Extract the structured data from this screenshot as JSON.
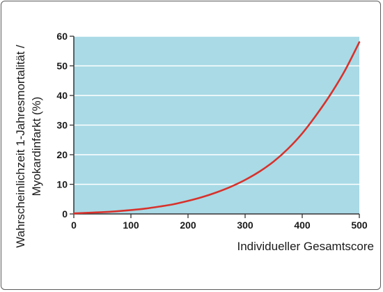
{
  "chart_data": {
    "type": "line",
    "title": "",
    "xlabel": "Individueller Gesamtscore",
    "ylabel_lines": [
      "Wahrscheinlichzeit 1-Jahresmortalität /",
      "Myokardinfarkt (%)"
    ],
    "xlim": [
      0,
      500
    ],
    "ylim": [
      0,
      60
    ],
    "x_ticks": [
      0,
      100,
      200,
      300,
      400,
      500
    ],
    "y_ticks": [
      0,
      10,
      20,
      30,
      40,
      50,
      60
    ],
    "grid": true,
    "series": [
      {
        "color": "#d9312b",
        "x": [
          0,
          25,
          50,
          75,
          100,
          125,
          150,
          175,
          200,
          225,
          250,
          275,
          300,
          325,
          350,
          375,
          400,
          425,
          450,
          475,
          500
        ],
        "y": [
          0.2,
          0.4,
          0.6,
          0.9,
          1.3,
          1.8,
          2.5,
          3.3,
          4.4,
          5.7,
          7.3,
          9.2,
          11.5,
          14.3,
          17.7,
          22.0,
          27.2,
          33.5,
          40.5,
          48.5,
          58.0
        ]
      }
    ]
  },
  "colors": {
    "plot_background": "#a9dae6",
    "grid": "#ffffff",
    "line": "#d9312b",
    "axis": "#333333"
  }
}
